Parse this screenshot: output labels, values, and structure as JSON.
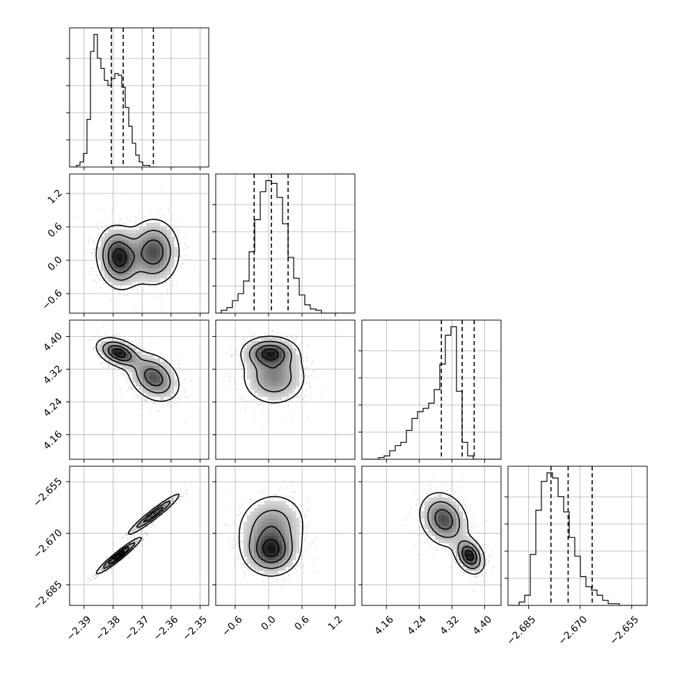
{
  "chart_data": {
    "type": "corner",
    "n_params": 4,
    "grid": true,
    "params": [
      {
        "range": [
          -2.395,
          -2.347
        ],
        "ticks": [
          -2.39,
          -2.38,
          -2.37,
          -2.36,
          -2.35
        ],
        "tick_labels": [
          "−2.39",
          "−2.38",
          "−2.37",
          "−2.36",
          "−2.35"
        ],
        "quantiles": [
          -2.3806,
          -2.3765,
          -2.3661
        ],
        "hist": {
          "edges_start": -2.395,
          "bin_width": 0.0012,
          "counts": [
            0,
            0,
            1,
            3,
            8,
            28,
            68,
            78,
            64,
            58,
            51,
            48,
            52,
            55,
            54,
            47,
            35,
            24,
            14,
            7,
            3,
            1,
            1,
            0,
            0
          ]
        }
      },
      {
        "range": [
          -0.95,
          1.55
        ],
        "ticks": [
          -0.6,
          0.0,
          0.6,
          1.2
        ],
        "tick_labels": [
          "−0.6",
          "0.0",
          "0.6",
          "1.2"
        ],
        "quantiles": [
          -0.26,
          0.05,
          0.35
        ],
        "hist": {
          "edges_start": -0.95,
          "bin_width": 0.1,
          "counts": [
            0,
            2,
            4,
            9,
            14,
            23,
            44,
            67,
            87,
            95,
            93,
            83,
            64,
            40,
            25,
            13,
            6,
            3,
            2,
            0,
            0,
            0,
            0,
            0,
            0
          ]
        }
      },
      {
        "range": [
          4.1,
          4.44
        ],
        "ticks": [
          4.16,
          4.24,
          4.32,
          4.4
        ],
        "tick_labels": [
          "4.16",
          "4.24",
          "4.32",
          "4.40"
        ],
        "quantiles": [
          4.2942,
          4.3451,
          4.3744
        ],
        "hist": {
          "edges_start": 4.1,
          "bin_width": 0.0136,
          "counts": [
            0,
            0,
            0,
            1,
            2,
            5,
            8,
            10,
            17,
            24,
            28,
            30,
            33,
            41,
            56,
            73,
            78,
            40,
            10,
            2,
            0,
            0,
            0,
            0,
            0
          ]
        }
      },
      {
        "range": [
          -2.691,
          -2.6505
        ],
        "ticks": [
          -2.685,
          -2.67,
          -2.655
        ],
        "tick_labels": [
          "−2.685",
          "−2.670",
          "−2.655"
        ],
        "quantiles": [
          -2.6785,
          -2.6735,
          -2.6665
        ],
        "hist": {
          "edges_start": -2.691,
          "bin_width": 0.00162,
          "counts": [
            0,
            0,
            2,
            6,
            30,
            56,
            73,
            78,
            75,
            64,
            55,
            40,
            29,
            17,
            11,
            9,
            6,
            3,
            1,
            1,
            0,
            0,
            0,
            0,
            0
          ]
        }
      }
    ],
    "pairs": [
      {
        "row": 1,
        "col": 0,
        "components": [
          {
            "w": 0.55,
            "mx": -2.378,
            "my": 0.05,
            "sx": 0.0038,
            "sy": 0.28,
            "rho": -0.1
          },
          {
            "w": 0.45,
            "mx": -2.366,
            "my": 0.15,
            "sx": 0.0045,
            "sy": 0.3,
            "rho": 0.0
          }
        ]
      },
      {
        "row": 2,
        "col": 0,
        "components": [
          {
            "w": 0.55,
            "mx": -2.378,
            "my": 4.36,
            "sx": 0.0038,
            "sy": 0.018,
            "rho": -0.4
          },
          {
            "w": 0.45,
            "mx": -2.366,
            "my": 4.3,
            "sx": 0.0045,
            "sy": 0.03,
            "rho": -0.3
          }
        ]
      },
      {
        "row": 2,
        "col": 1,
        "components": [
          {
            "w": 0.6,
            "mx": 0.02,
            "my": 4.36,
            "sx": 0.25,
            "sy": 0.02,
            "rho": 0.0
          },
          {
            "w": 0.4,
            "mx": 0.1,
            "my": 4.3,
            "sx": 0.3,
            "sy": 0.035,
            "rho": 0.0
          }
        ]
      },
      {
        "row": 3,
        "col": 0,
        "components": [
          {
            "w": 0.55,
            "mx": -2.378,
            "my": -2.6765,
            "sx": 0.0038,
            "sy": 0.0026,
            "rho": 0.96
          },
          {
            "w": 0.45,
            "mx": -2.366,
            "my": -2.6645,
            "sx": 0.0045,
            "sy": 0.003,
            "rho": 0.96
          }
        ]
      },
      {
        "row": 3,
        "col": 1,
        "components": [
          {
            "w": 0.6,
            "mx": 0.05,
            "my": -2.6755,
            "sx": 0.25,
            "sy": 0.0035,
            "rho": 0.0
          },
          {
            "w": 0.4,
            "mx": 0.05,
            "my": -2.668,
            "sx": 0.32,
            "sy": 0.005,
            "rho": 0.1
          }
        ]
      },
      {
        "row": 3,
        "col": 2,
        "components": [
          {
            "w": 0.55,
            "mx": 4.363,
            "my": -2.6765,
            "sx": 0.018,
            "sy": 0.0026,
            "rho": -0.3
          },
          {
            "w": 0.45,
            "mx": 4.3,
            "my": -2.666,
            "sx": 0.03,
            "sy": 0.004,
            "rho": -0.2
          }
        ]
      }
    ]
  }
}
